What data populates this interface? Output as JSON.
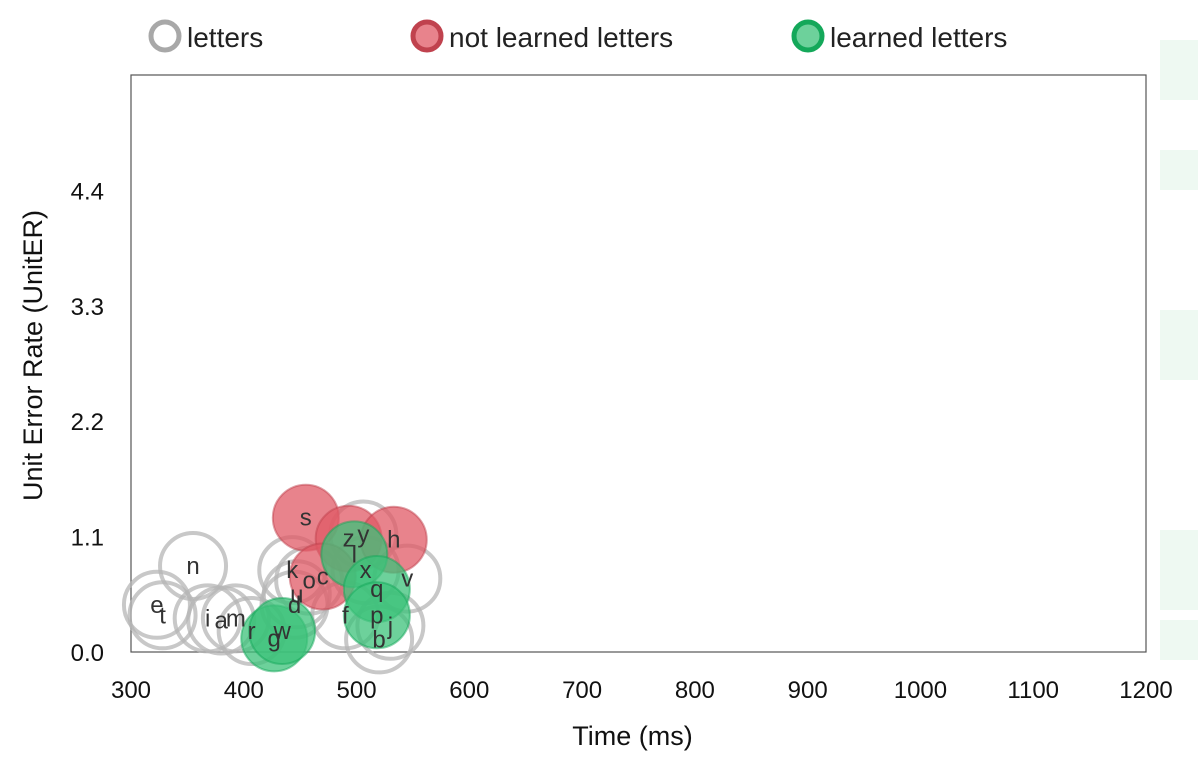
{
  "chart_data": {
    "type": "scatter",
    "title": "",
    "xlabel": "Time (ms)",
    "ylabel": "Unit Error Rate (UnitER)",
    "xlim": [
      300,
      1200
    ],
    "ylim": [
      0,
      5.5
    ],
    "x_ticks": [
      300,
      400,
      500,
      600,
      700,
      800,
      900,
      1000,
      1100,
      1200
    ],
    "y_ticks": [
      0.0,
      1.1,
      2.2,
      3.3,
      4.4
    ],
    "y_tick_labels": [
      "0.0",
      "1.1",
      "2.2",
      "3.3",
      "4.4"
    ],
    "grid": false,
    "legend_position": "top",
    "legend": [
      {
        "key": "letters",
        "label": "letters",
        "fill": "#ffffff",
        "fill_opacity": 0.0,
        "stroke": "#a8a8a8"
      },
      {
        "key": "not_learned",
        "label": "not learned letters",
        "fill": "#e05a66",
        "fill_opacity": 0.75,
        "stroke": "#c0424e"
      },
      {
        "key": "learned",
        "label": "learned letters",
        "fill": "#3cc27a",
        "fill_opacity": 0.75,
        "stroke": "#14a85a"
      }
    ],
    "points": [
      {
        "label": "e",
        "x": 323,
        "y": 0.45,
        "group": "letters"
      },
      {
        "label": "t",
        "x": 328,
        "y": 0.35,
        "group": "letters"
      },
      {
        "label": "n",
        "x": 355,
        "y": 0.82,
        "group": "letters"
      },
      {
        "label": "i",
        "x": 368,
        "y": 0.32,
        "group": "letters"
      },
      {
        "label": "a",
        "x": 380,
        "y": 0.3,
        "group": "letters"
      },
      {
        "label": "m",
        "x": 393,
        "y": 0.32,
        "group": "letters"
      },
      {
        "label": "r",
        "x": 407,
        "y": 0.2,
        "group": "letters"
      },
      {
        "label": "k",
        "x": 443,
        "y": 0.78,
        "group": "letters"
      },
      {
        "label": "u",
        "x": 447,
        "y": 0.55,
        "group": "letters"
      },
      {
        "label": "d",
        "x": 445,
        "y": 0.45,
        "group": "letters"
      },
      {
        "label": "o",
        "x": 458,
        "y": 0.68,
        "group": "letters"
      },
      {
        "label": "f",
        "x": 490,
        "y": 0.35,
        "group": "letters"
      },
      {
        "label": "j",
        "x": 530,
        "y": 0.25,
        "group": "letters"
      },
      {
        "label": "b",
        "x": 520,
        "y": 0.12,
        "group": "letters"
      },
      {
        "label": "v",
        "x": 545,
        "y": 0.7,
        "group": "letters"
      },
      {
        "label": "x",
        "x": 508,
        "y": 0.78,
        "group": "letters"
      },
      {
        "label": "y",
        "x": 506,
        "y": 1.12,
        "group": "letters"
      },
      {
        "label": "s",
        "x": 455,
        "y": 1.28,
        "group": "not_learned"
      },
      {
        "label": "z",
        "x": 493,
        "y": 1.08,
        "group": "not_learned"
      },
      {
        "label": "h",
        "x": 533,
        "y": 1.07,
        "group": "not_learned"
      },
      {
        "label": "c",
        "x": 470,
        "y": 0.72,
        "group": "not_learned"
      },
      {
        "label": "l",
        "x": 498,
        "y": 0.93,
        "group": "learned"
      },
      {
        "label": "q",
        "x": 518,
        "y": 0.6,
        "group": "learned"
      },
      {
        "label": "p",
        "x": 518,
        "y": 0.35,
        "group": "learned"
      },
      {
        "label": "g",
        "x": 427,
        "y": 0.13,
        "group": "learned"
      },
      {
        "label": "w",
        "x": 434,
        "y": 0.2,
        "group": "learned"
      }
    ]
  }
}
